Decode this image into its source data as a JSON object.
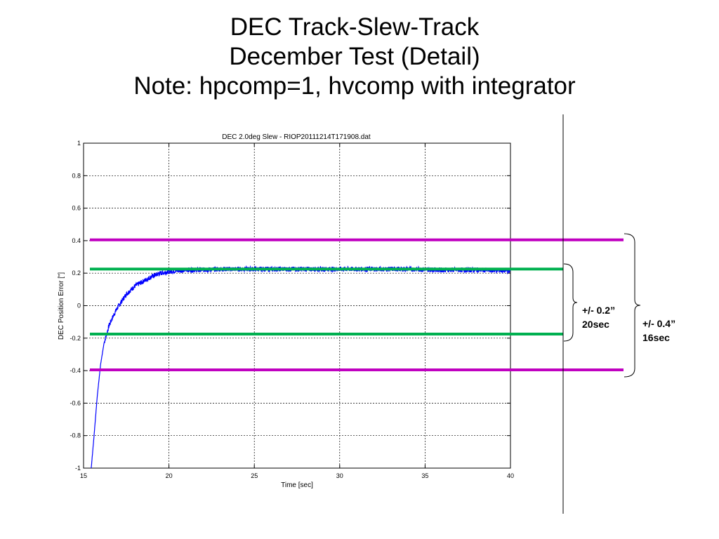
{
  "slide": {
    "title_line1": "DEC Track-Slew-Track",
    "title_line2": "December Test (Detail)",
    "title_line3": "Note: hpcomp=1, hvcomp with integrator"
  },
  "chart_data": {
    "type": "line",
    "title": "DEC 2.0deg Slew - RIOP20111214T171908.dat",
    "xlabel": "Time [sec]",
    "ylabel": "DEC Position Error [\"]",
    "xlim": [
      15,
      40
    ],
    "ylim": [
      -1,
      1
    ],
    "xticks": [
      15,
      20,
      25,
      30,
      35,
      40
    ],
    "yticks": [
      -1,
      -0.8,
      -0.6,
      -0.4,
      -0.2,
      0,
      0.2,
      0.4,
      0.6,
      0.8,
      1
    ],
    "xtick_labels": [
      "15",
      "20",
      "25",
      "30",
      "35",
      "40"
    ],
    "ytick_labels": [
      "-1",
      "-0.8",
      "-0.6",
      "-0.4",
      "-0.2",
      "0",
      "0.2",
      "0.4",
      "0.6",
      "0.8",
      "1"
    ],
    "grid": true,
    "series": [
      {
        "color": "#0000ff",
        "x": [
          15.45,
          15.6,
          15.8,
          16.0,
          16.2,
          16.5,
          16.8,
          17.0,
          17.5,
          18.0,
          18.5,
          19.0,
          19.5,
          20.0,
          20.5,
          21.0,
          21.5,
          22.0,
          23.0,
          24.0,
          25.0,
          26.0,
          28.0,
          30.0,
          32.0,
          34.0,
          36.0,
          38.0,
          40.0
        ],
        "y": [
          -1.0,
          -0.82,
          -0.56,
          -0.36,
          -0.23,
          -0.12,
          -0.05,
          -0.01,
          0.07,
          0.12,
          0.15,
          0.18,
          0.2,
          0.21,
          0.215,
          0.22,
          0.22,
          0.22,
          0.225,
          0.225,
          0.225,
          0.225,
          0.225,
          0.225,
          0.225,
          0.225,
          0.22,
          0.22,
          0.215
        ],
        "noise": 0.015
      }
    ],
    "reference_lines": [
      {
        "y": 0.405,
        "color": "#c000c0"
      },
      {
        "y": 0.225,
        "color": "#00b050"
      },
      {
        "y": -0.175,
        "color": "#00b050"
      },
      {
        "y": -0.395,
        "color": "#c000c0"
      }
    ],
    "annotations": [
      {
        "line1": "+/- 0.2”",
        "line2": "20sec"
      },
      {
        "line1": "+/- 0.4”",
        "line2": "16sec"
      }
    ]
  }
}
